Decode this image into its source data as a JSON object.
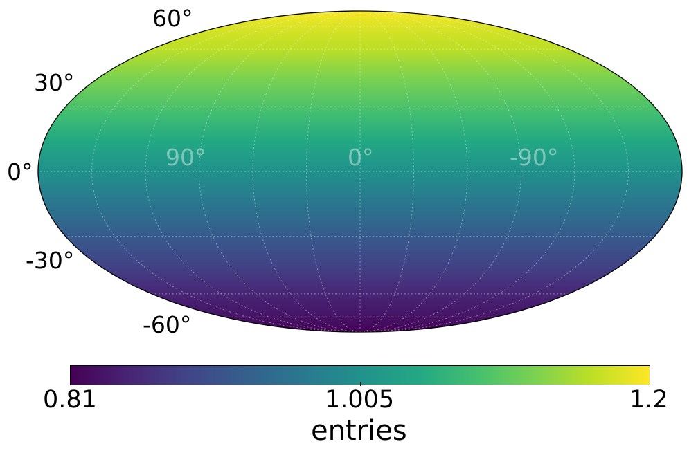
{
  "chart_data": {
    "type": "heatmap",
    "projection": "mollweide",
    "colormap": "viridis",
    "grid": true,
    "value_gradient": {
      "description_axis": "latitude",
      "latitude_deg": [
        90,
        60,
        30,
        0,
        -30,
        -60,
        -90
      ],
      "values": [
        1.2,
        1.16,
        1.09,
        1.005,
        0.92,
        0.85,
        0.81
      ]
    },
    "lat_tick_labels": [
      "60°",
      "30°",
      "0°",
      "-30°",
      "-60°"
    ],
    "lon_tick_labels": [
      "90°",
      "0°",
      "-90°"
    ],
    "colorbar": {
      "label": "entries",
      "min": 0.81,
      "max": 1.2,
      "tick_labels": [
        "0.81",
        "1.005",
        "1.2"
      ],
      "colors": [
        "#440154",
        "#482475",
        "#414487",
        "#355f8d",
        "#2a788e",
        "#21918c",
        "#22a884",
        "#44bf70",
        "#7ad151",
        "#bddf26",
        "#fde725"
      ]
    }
  }
}
